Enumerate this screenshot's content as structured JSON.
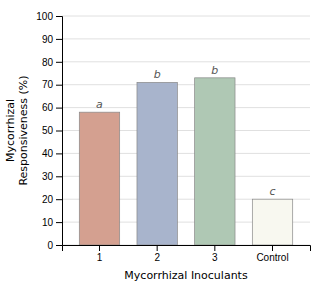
{
  "chart_data": {
    "type": "bar",
    "categories": [
      "1",
      "2",
      "3",
      "Control"
    ],
    "values": [
      58,
      71,
      73,
      20
    ],
    "colors": [
      "#d4a090",
      "#a8b4cc",
      "#afc8b4",
      "#f8f8f0"
    ],
    "annotations": [
      "a",
      "b",
      "b",
      "c"
    ],
    "y_label": "Mycorrhizal\nResponsiveness (%)",
    "x_label": "Mycorrhizal Inoculants",
    "ylim": [
      0,
      100
    ],
    "yticks": [
      0,
      10,
      20,
      30,
      40,
      50,
      60,
      70,
      80,
      90,
      100
    ],
    "grid": true
  }
}
